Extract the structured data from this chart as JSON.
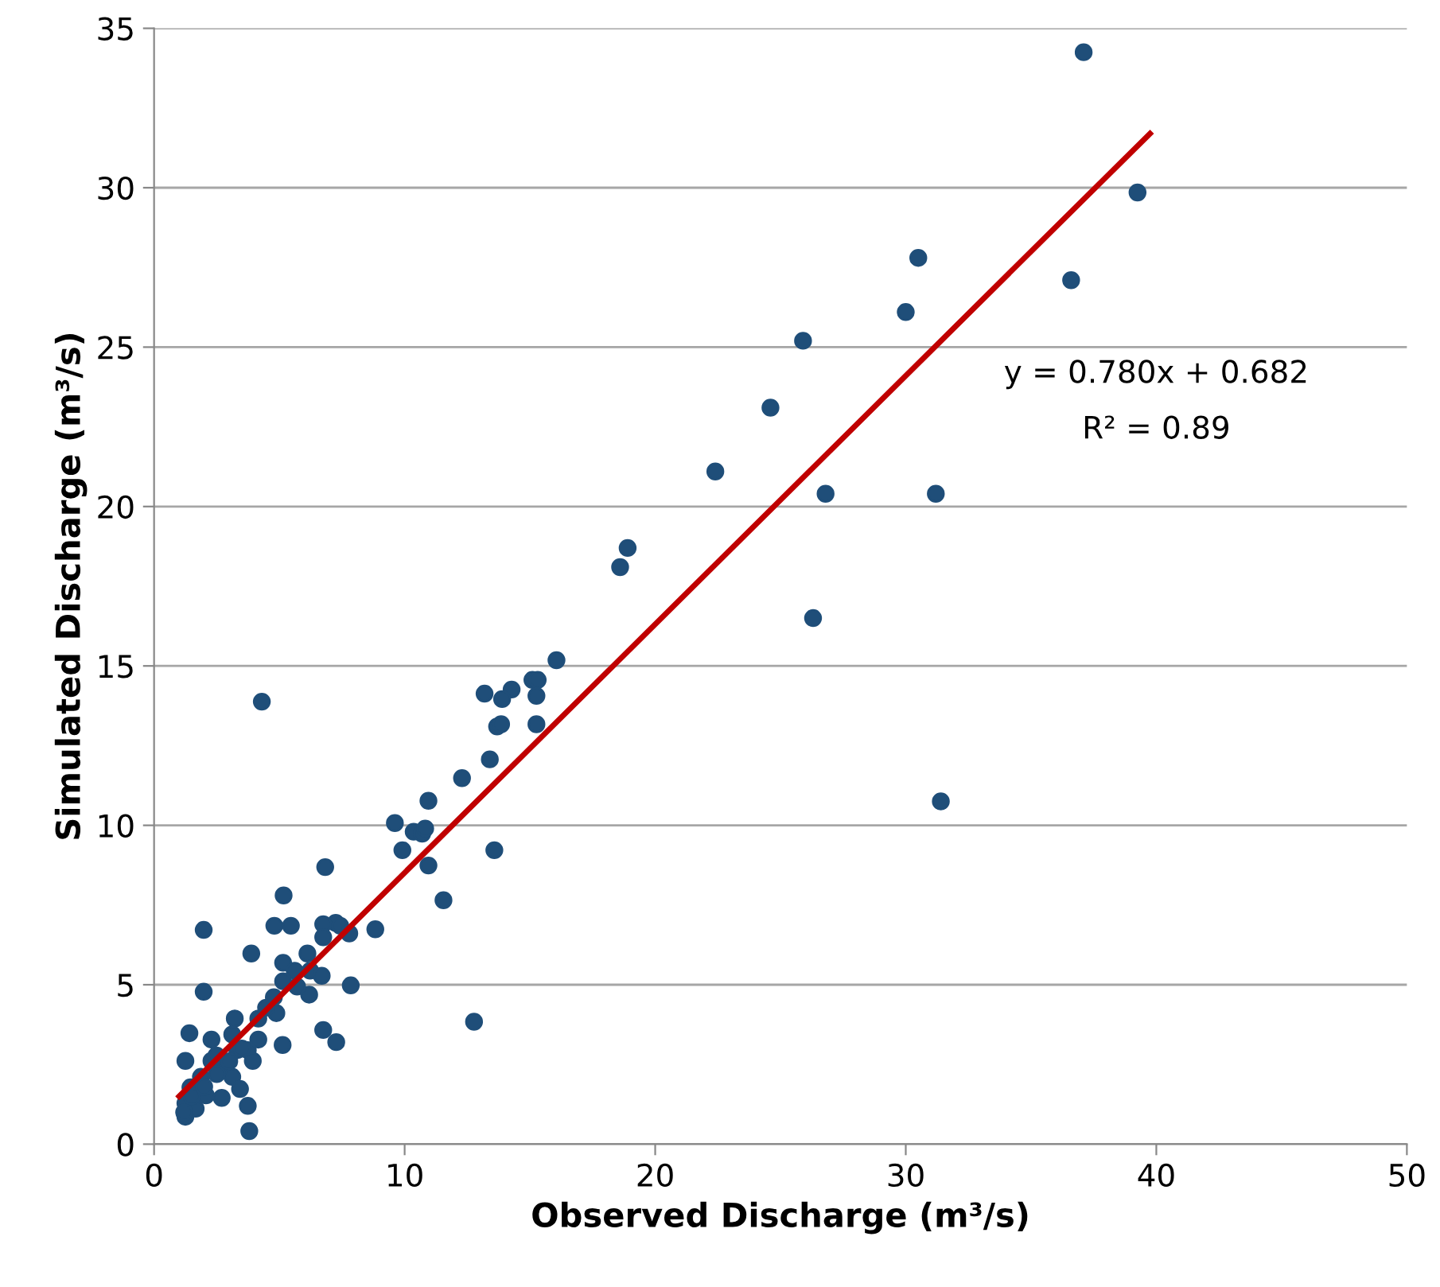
{
  "chart_data": {
    "type": "scatter",
    "xlabel": "Observed Discharge (m³/s)",
    "ylabel": "Simulated Discharge (m³/s)",
    "xlim": [
      0,
      50
    ],
    "ylim": [
      0,
      35
    ],
    "xticks": [
      0,
      10,
      20,
      30,
      40,
      50
    ],
    "yticks": [
      0,
      5,
      10,
      15,
      20,
      25,
      30,
      35
    ],
    "grid": "y",
    "legend": false,
    "annotations": [
      "y = 0.780x + 0.682",
      "R² = 0.89"
    ],
    "series": [
      {
        "color": "#1f4e79",
        "marker": "circle",
        "x": [
          37.1,
          39.25,
          36.6,
          30.5,
          30.0,
          25.9,
          24.6,
          22.4,
          26.8,
          31.2,
          26.3,
          31.4,
          18.9,
          18.6,
          16.06,
          15.1,
          15.31,
          14.27,
          13.89,
          13.19,
          15.26,
          13.69,
          13.85,
          15.26,
          13.4,
          12.29,
          10.95,
          9.61,
          10.36,
          10.7,
          10.82,
          9.91,
          10.95,
          13.58,
          6.83,
          11.55,
          5.17,
          5.46,
          8.83,
          7.25,
          4.3,
          12.77,
          1.98,
          1.98,
          3.88,
          4.8,
          7.85,
          6.75,
          7.43,
          6.75,
          7.79,
          5.15,
          6.12,
          5.61,
          5.15,
          6.23,
          6.69,
          6.19,
          5.71,
          4.16,
          3.22,
          4.88,
          6.75,
          7.27,
          5.13,
          1.41,
          2.29,
          3.12,
          3.74,
          3.94,
          2.7,
          1.25,
          3.12,
          1.45,
          2.7,
          3.43,
          3.74,
          3.8,
          1.25,
          1.25,
          1.66,
          2.07,
          2.29,
          4.16,
          4.47,
          4.78,
          3.32,
          1.87,
          2.49,
          1.2,
          1.5,
          2.0,
          2.5,
          3.0,
          3.5
        ],
        "values": [
          34.25,
          29.85,
          27.1,
          27.8,
          26.1,
          25.2,
          23.1,
          21.1,
          20.4,
          20.4,
          16.5,
          10.75,
          18.7,
          18.1,
          15.18,
          14.56,
          14.56,
          14.26,
          13.96,
          14.13,
          14.06,
          13.1,
          13.17,
          13.17,
          12.07,
          11.48,
          10.77,
          10.07,
          9.8,
          9.74,
          9.9,
          9.22,
          8.74,
          9.22,
          8.69,
          7.65,
          7.8,
          6.85,
          6.74,
          6.94,
          13.88,
          3.84,
          6.72,
          4.78,
          5.98,
          6.85,
          4.98,
          6.9,
          6.85,
          6.49,
          6.61,
          5.69,
          5.98,
          5.44,
          5.11,
          5.44,
          5.28,
          4.69,
          4.94,
          3.94,
          3.94,
          4.11,
          3.58,
          3.2,
          3.11,
          3.48,
          3.28,
          3.44,
          2.95,
          2.61,
          2.45,
          2.61,
          2.11,
          1.78,
          1.45,
          1.73,
          1.2,
          0.41,
          1.28,
          0.86,
          1.11,
          1.53,
          2.61,
          3.28,
          4.28,
          4.61,
          2.95,
          2.11,
          2.78,
          1.0,
          1.5,
          1.8,
          2.2,
          2.6,
          3.0
        ]
      },
      {
        "type": "line",
        "color": "#c00000",
        "x": [
          1.0,
          39.75
        ],
        "values": [
          1.5,
          31.7
        ]
      }
    ]
  }
}
